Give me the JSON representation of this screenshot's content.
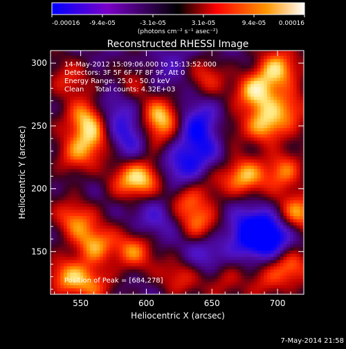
{
  "chart_data": {
    "type": "heatmap",
    "title": "Reconstructed RHESSI Image",
    "xlabel": "Heliocentric X (arcsec)",
    "ylabel": "Heliocentric Y (arcsec)",
    "xlim": [
      527,
      720
    ],
    "ylim": [
      116,
      310
    ],
    "x_ticks": [
      550,
      600,
      650,
      700
    ],
    "y_ticks": [
      150,
      200,
      250,
      300
    ],
    "colorbar": {
      "ticks": [
        "-0.00016",
        "-9.4e-05",
        "-3.1e-05",
        "3.1e-05",
        "9.4e-05",
        "0.00016"
      ],
      "unit_text": "(photons cm⁻² s⁻¹ asec⁻²)",
      "range": [
        -0.00016,
        0.00016
      ],
      "colors": [
        "#0000ff",
        "#7a00c8",
        "#000000",
        "#ff0000",
        "#ff8c00",
        "#ffffff"
      ]
    },
    "info_lines": [
      "14-May-2012 15:09:06.000 to 15:13:52.000",
      "Detectors: 3F 5F 6F 7F 8F 9F, Att 0",
      "Energy Range: 25.0 - 50.0 keV",
      "Clean     Total counts: 4.32E+03"
    ],
    "peak_label": "Position of Peak = [684,278]",
    "peak": [
      684,
      278
    ],
    "hotspots": [
      {
        "x": 555,
        "y": 258,
        "value": 1.0
      },
      {
        "x": 560,
        "y": 240,
        "value": 0.7
      },
      {
        "x": 540,
        "y": 285,
        "value": 0.5
      },
      {
        "x": 545,
        "y": 225,
        "value": 0.6
      },
      {
        "x": 612,
        "y": 258,
        "value": 0.95
      },
      {
        "x": 605,
        "y": 240,
        "value": 0.6
      },
      {
        "x": 600,
        "y": 210,
        "value": 0.8
      },
      {
        "x": 585,
        "y": 205,
        "value": 0.6
      },
      {
        "x": 590,
        "y": 150,
        "value": 0.7
      },
      {
        "x": 560,
        "y": 155,
        "value": 0.85
      },
      {
        "x": 545,
        "y": 175,
        "value": 0.7
      },
      {
        "x": 540,
        "y": 130,
        "value": 0.75
      },
      {
        "x": 560,
        "y": 125,
        "value": 0.6
      },
      {
        "x": 630,
        "y": 190,
        "value": 0.65
      },
      {
        "x": 640,
        "y": 170,
        "value": 0.7
      },
      {
        "x": 650,
        "y": 205,
        "value": 0.45
      },
      {
        "x": 660,
        "y": 245,
        "value": 0.5
      },
      {
        "x": 675,
        "y": 210,
        "value": 0.85
      },
      {
        "x": 684,
        "y": 278,
        "value": 1.0
      },
      {
        "x": 700,
        "y": 295,
        "value": 0.95
      },
      {
        "x": 690,
        "y": 250,
        "value": 0.9
      },
      {
        "x": 710,
        "y": 265,
        "value": 0.7
      },
      {
        "x": 705,
        "y": 215,
        "value": 0.8
      },
      {
        "x": 715,
        "y": 180,
        "value": 0.85
      },
      {
        "x": 710,
        "y": 140,
        "value": 0.75
      },
      {
        "x": 690,
        "y": 125,
        "value": 0.5
      },
      {
        "x": 660,
        "y": 130,
        "value": 0.45
      },
      {
        "x": 625,
        "y": 130,
        "value": 0.5
      },
      {
        "x": 645,
        "y": 290,
        "value": 0.5
      },
      {
        "x": 590,
        "y": 285,
        "value": 0.45
      }
    ],
    "coldspots": [
      {
        "x": 590,
        "y": 240,
        "value": -0.7
      },
      {
        "x": 640,
        "y": 250,
        "value": -0.75
      },
      {
        "x": 645,
        "y": 230,
        "value": -0.6
      },
      {
        "x": 625,
        "y": 215,
        "value": -0.55
      },
      {
        "x": 680,
        "y": 165,
        "value": -0.9
      },
      {
        "x": 695,
        "y": 160,
        "value": -0.85
      },
      {
        "x": 575,
        "y": 265,
        "value": -0.55
      },
      {
        "x": 645,
        "y": 150,
        "value": -0.5
      },
      {
        "x": 610,
        "y": 180,
        "value": -0.45
      },
      {
        "x": 620,
        "y": 300,
        "value": -0.4
      }
    ]
  },
  "footer_date": "7-May-2014 21:58"
}
